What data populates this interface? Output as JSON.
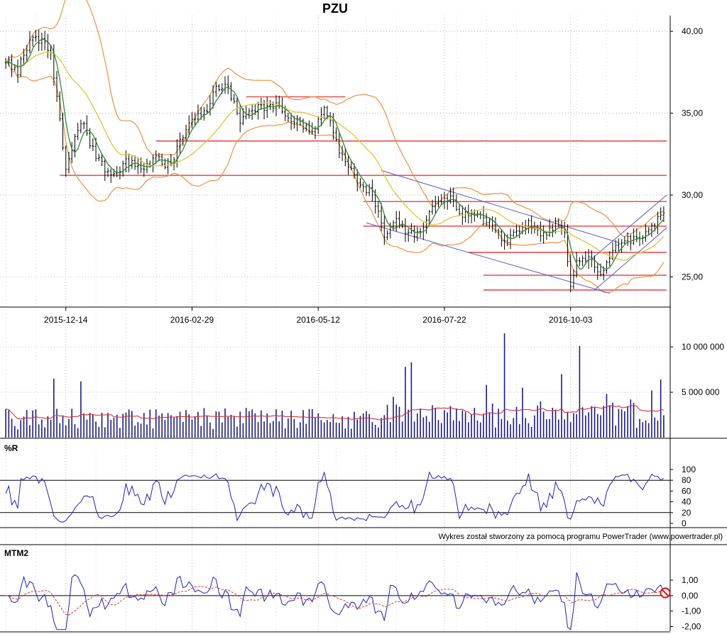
{
  "title": "PZU",
  "credit": "Wykres został stworzony za pomocą programu PowerTrader (www.powertrader.pl)",
  "panel_labels": {
    "wr": "%R",
    "mtm": "MTM2"
  },
  "colors": {
    "candle": "#000000",
    "sma_short": "#2e8b2e",
    "sma_long": "#e8c23a",
    "bands": "#f0923a",
    "levels": "#e85050",
    "channel": "#5a5ad0",
    "volume": "#1a1a8c",
    "volume_avg": "#e03030",
    "wr": "#2020c0",
    "mtm": "#2020c0",
    "mtm_signal": "#e03030",
    "grid": "#999999"
  },
  "chart_data": [
    {
      "type": "line",
      "name": "price",
      "title": "PZU",
      "x_ticks": [
        "2015-12-14",
        "2016-02-29",
        "2016-05-12",
        "2016-07-22",
        "2016-10-03"
      ],
      "x_tick_index": [
        20,
        62,
        104,
        146,
        188
      ],
      "n_bars": 220,
      "y_ticks": [
        "25,00",
        "30,00",
        "35,00",
        "40,00"
      ],
      "y_tick_values": [
        25,
        30,
        35,
        40
      ],
      "ylim": [
        23.2,
        40.7
      ],
      "grid": true,
      "anchors": [
        [
          0,
          38.2
        ],
        [
          4,
          37.6
        ],
        [
          9,
          39.8
        ],
        [
          15,
          38.8
        ],
        [
          20,
          31.5
        ],
        [
          25,
          34.6
        ],
        [
          30,
          32.4
        ],
        [
          35,
          31.2
        ],
        [
          40,
          32.0
        ],
        [
          45,
          31.6
        ],
        [
          50,
          32.2
        ],
        [
          55,
          31.8
        ],
        [
          58,
          33.2
        ],
        [
          62,
          34.6
        ],
        [
          66,
          34.9
        ],
        [
          70,
          36.4
        ],
        [
          74,
          36.6
        ],
        [
          78,
          34.5
        ],
        [
          84,
          35.3
        ],
        [
          90,
          35.6
        ],
        [
          96,
          34.5
        ],
        [
          102,
          33.9
        ],
        [
          106,
          35.4
        ],
        [
          110,
          33.2
        ],
        [
          114,
          31.6
        ],
        [
          118,
          30.6
        ],
        [
          122,
          30.2
        ],
        [
          126,
          27.6
        ],
        [
          130,
          28.6
        ],
        [
          134,
          27.5
        ],
        [
          138,
          27.9
        ],
        [
          143,
          29.5
        ],
        [
          147,
          29.9
        ],
        [
          152,
          28.8
        ],
        [
          158,
          28.9
        ],
        [
          162,
          28.1
        ],
        [
          166,
          27.2
        ],
        [
          170,
          27.8
        ],
        [
          174,
          28.2
        ],
        [
          178,
          27.6
        ],
        [
          183,
          28.1
        ],
        [
          186,
          27.7
        ],
        [
          188,
          24.6
        ],
        [
          190,
          25.8
        ],
        [
          195,
          26.3
        ],
        [
          198,
          25.0
        ],
        [
          202,
          26.6
        ],
        [
          206,
          27.2
        ],
        [
          210,
          27.4
        ],
        [
          214,
          27.9
        ],
        [
          218,
          28.8
        ],
        [
          219,
          29.1
        ]
      ],
      "moving_avg_periods": [
        5,
        20
      ],
      "band_width": 2,
      "support_resistance": [
        {
          "value": 36.0,
          "from_index": 80,
          "to_index": 113
        },
        {
          "value": 33.3,
          "from_index": 50,
          "to_index": 220
        },
        {
          "value": 31.2,
          "from_index": 18,
          "to_index": 220
        },
        {
          "value": 29.6,
          "from_index": 119,
          "to_index": 220
        },
        {
          "value": 28.1,
          "from_index": 119,
          "to_index": 220
        },
        {
          "value": 26.5,
          "from_index": 154,
          "to_index": 220
        },
        {
          "value": 25.1,
          "from_index": 159,
          "to_index": 220
        },
        {
          "value": 24.2,
          "from_index": 159,
          "to_index": 220
        }
      ],
      "channels": [
        {
          "from": [
            125,
            31.5
          ],
          "to": [
            204,
            27.1
          ]
        },
        {
          "from": [
            120,
            28.3
          ],
          "to": [
            201,
            24.0
          ]
        },
        {
          "from": [
            195,
            26.1
          ],
          "to": [
            220,
            30.0
          ]
        },
        {
          "from": [
            196,
            24.2
          ],
          "to": [
            220,
            28.0
          ]
        }
      ]
    },
    {
      "type": "bar",
      "name": "volume",
      "y_ticks": [
        "5 000 000",
        "10 000 000"
      ],
      "y_tick_values": [
        5000000,
        10000000
      ],
      "ylim": [
        0,
        11500000
      ],
      "spikes": [
        [
          16,
          6500000
        ],
        [
          25,
          6200000
        ],
        [
          85,
          3000000
        ],
        [
          129,
          4500000
        ],
        [
          133,
          7800000
        ],
        [
          135,
          8300000
        ],
        [
          160,
          5800000
        ],
        [
          166,
          11500000
        ],
        [
          172,
          5500000
        ],
        [
          185,
          7000000
        ],
        [
          191,
          10100000
        ],
        [
          200,
          4800000
        ],
        [
          208,
          4200000
        ],
        [
          215,
          5200000
        ],
        [
          218,
          6400000
        ]
      ],
      "moving_avg_period": 20
    },
    {
      "type": "line",
      "name": "%R",
      "y_ticks": [
        "0",
        "20",
        "40",
        "60",
        "80",
        "100"
      ],
      "y_tick_values": [
        0,
        20,
        40,
        60,
        80,
        100
      ],
      "ylim": [
        0,
        100
      ],
      "reference_lines": [
        20,
        80
      ],
      "period": 10
    },
    {
      "type": "line",
      "name": "MTM2",
      "y_ticks": [
        "-2,00",
        "-1,00",
        "0,00",
        "1,00"
      ],
      "y_tick_values": [
        -2,
        -1,
        0,
        1
      ],
      "ylim": [
        -2.3,
        1.6
      ],
      "reference_lines": [
        0
      ],
      "lag": 2,
      "signal_period": 10
    }
  ]
}
